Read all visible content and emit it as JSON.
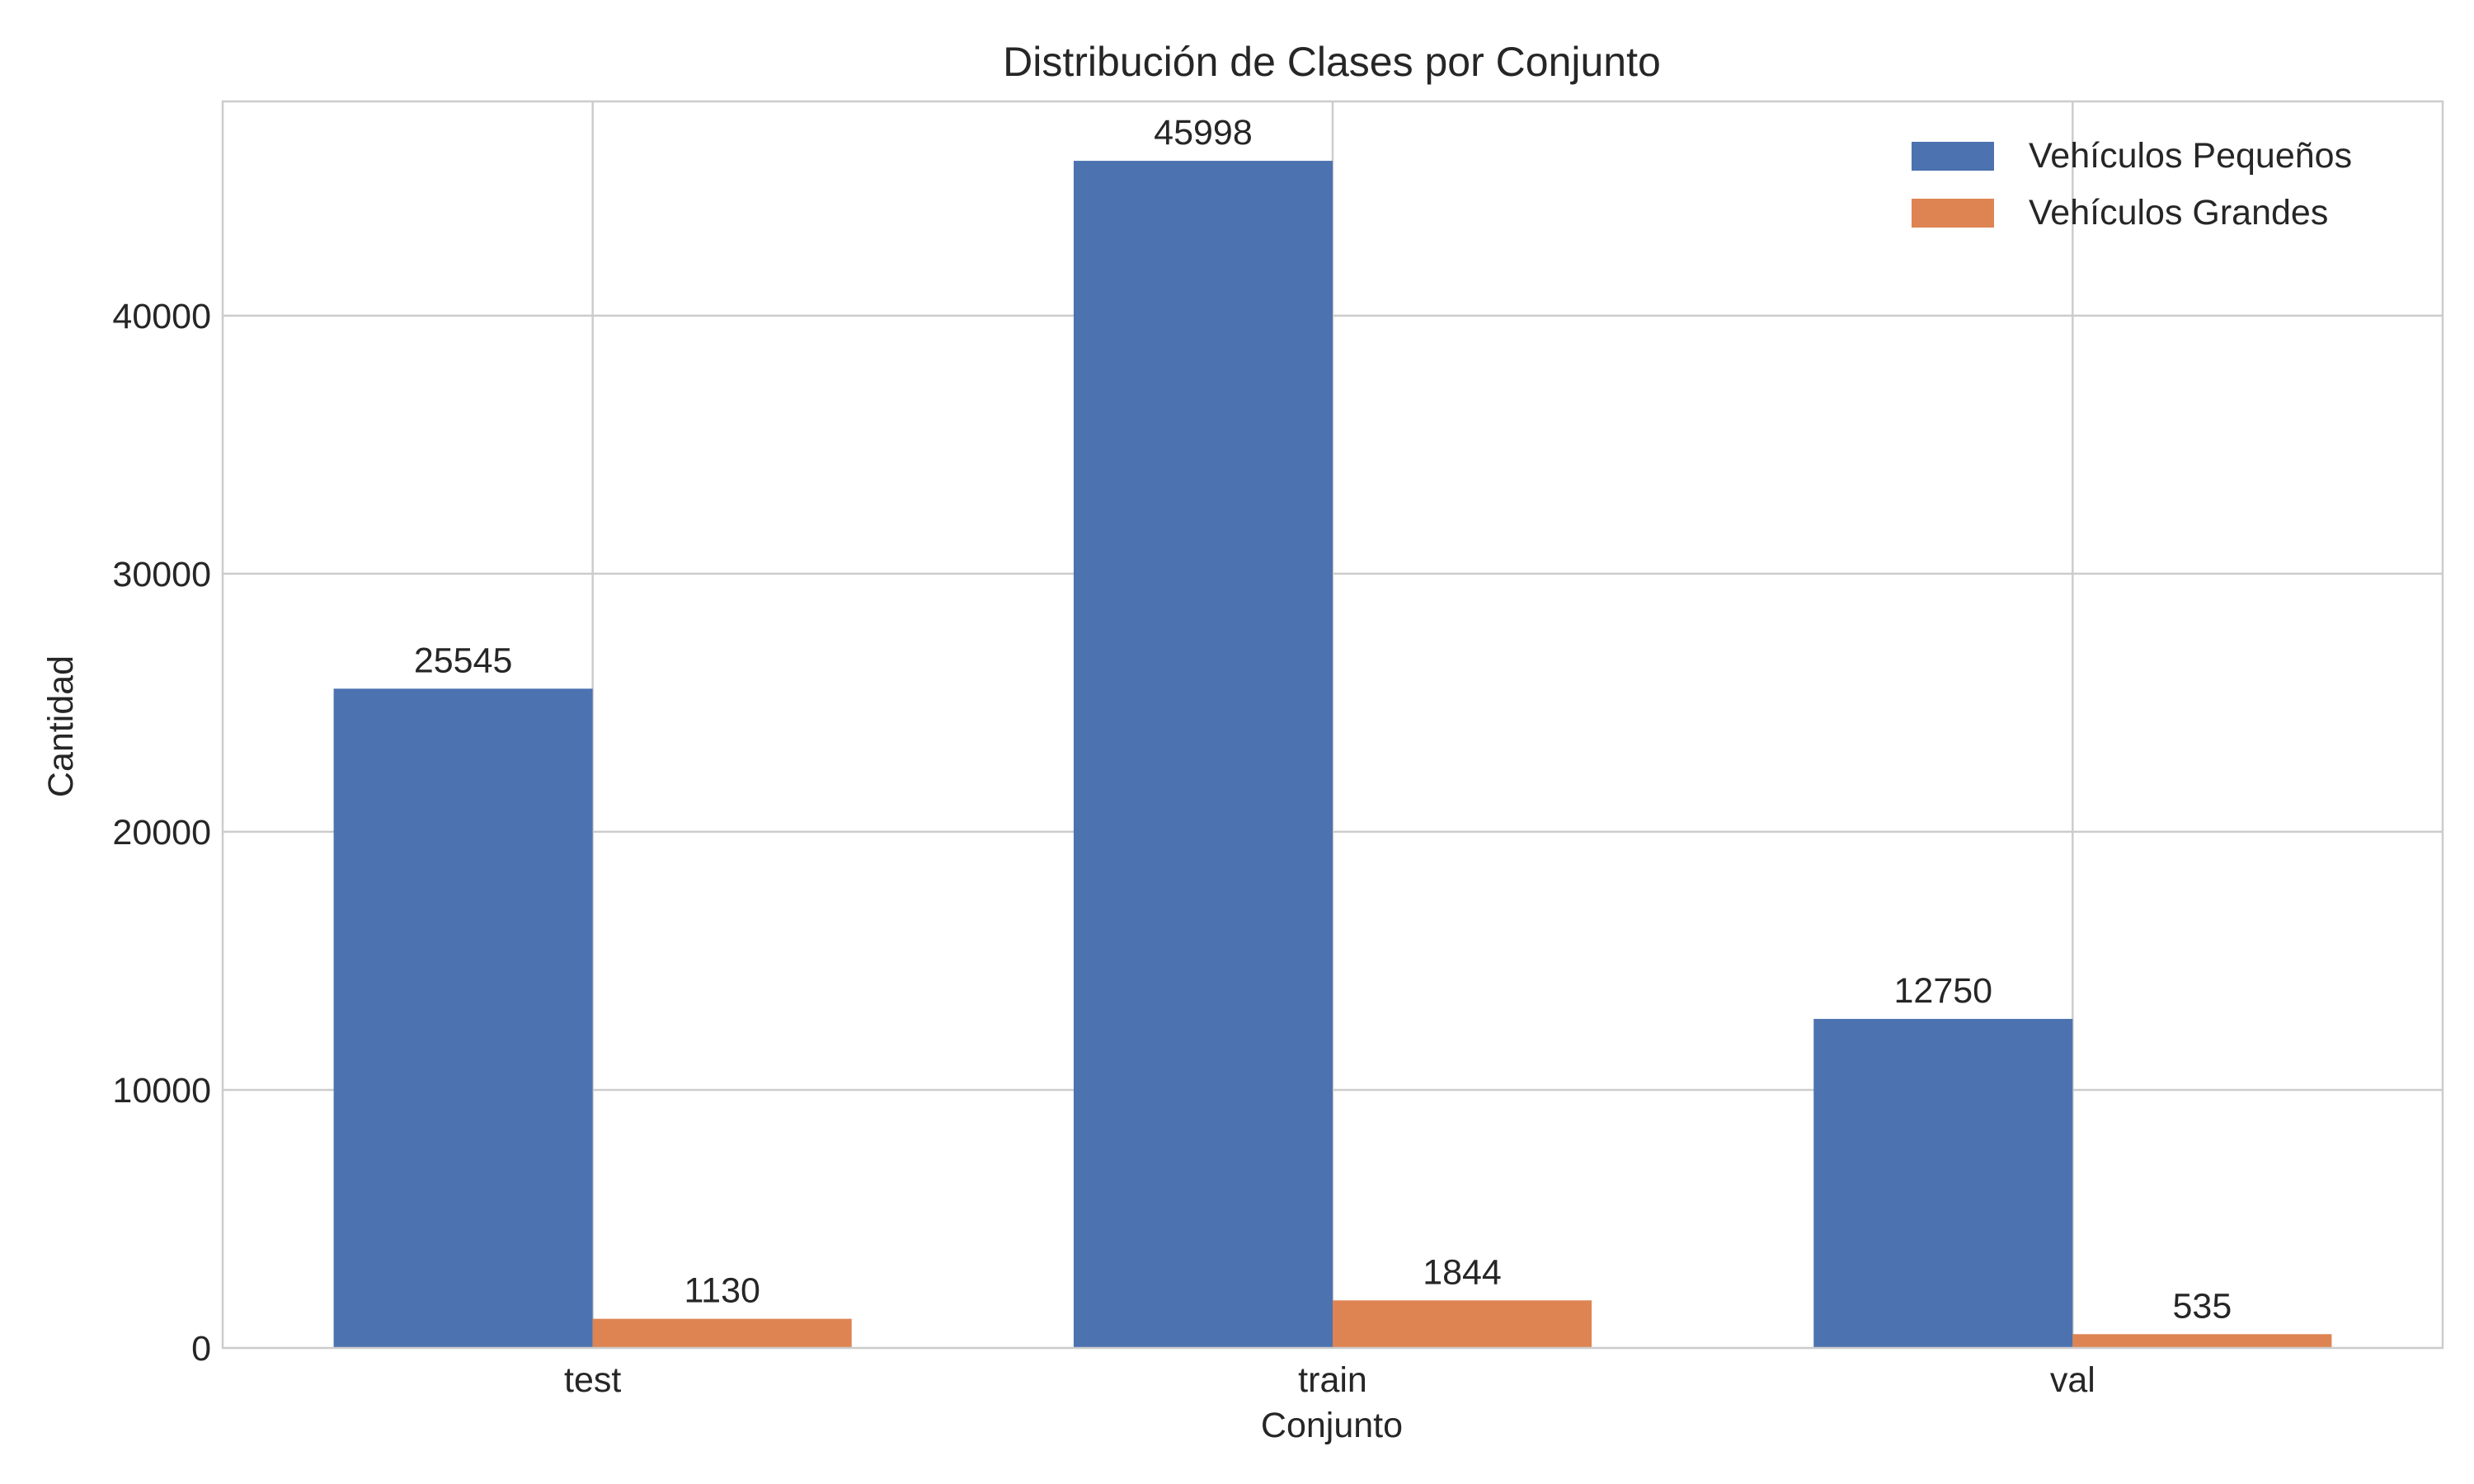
{
  "chart_data": {
    "type": "bar",
    "title": "Distribución de Clases por Conjunto",
    "xlabel": "Conjunto",
    "ylabel": "Cantidad",
    "categories": [
      "test",
      "train",
      "val"
    ],
    "series": [
      {
        "name": "Vehículos Pequeños",
        "color": "#4c72b0",
        "values": [
          25545,
          45998,
          12750
        ]
      },
      {
        "name": "Vehículos Grandes",
        "color": "#dd8452",
        "values": [
          1130,
          1844,
          535
        ]
      }
    ],
    "ylim": [
      0,
      48300
    ],
    "yticks": [
      0,
      10000,
      20000,
      30000,
      40000
    ],
    "grid": true,
    "legend": "top-right",
    "data_labels": true
  }
}
